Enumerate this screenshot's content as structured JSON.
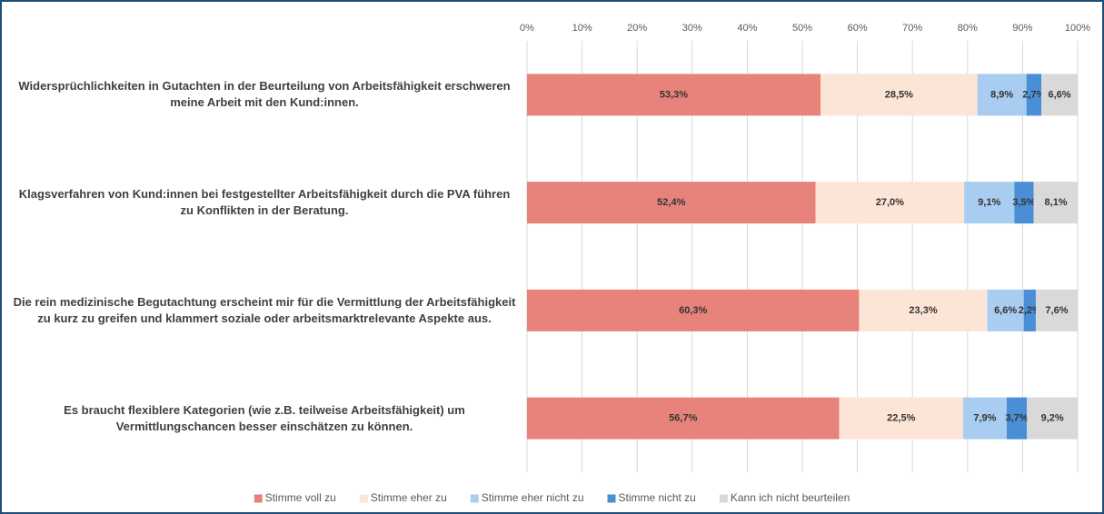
{
  "chart_data": {
    "type": "stacked-bar-horizontal",
    "categories": [
      "Widersprüchlichkeiten in Gutachten in der Beurteilung von Arbeitsfähigkeit erschweren meine Arbeit mit den Kund:innen.",
      "Klagsverfahren von Kund:innen bei festgestellter Arbeitsfähigkeit durch die PVA führen zu Konflikten in der Beratung.",
      "Die rein medizinische Begutachtung erscheint mir für die Vermittlung der Arbeitsfähigkeit zu kurz zu greifen und klammert soziale oder arbeitsmarktrelevante Aspekte aus.",
      "Es braucht flexiblere Kategorien (wie z.B. teilweise Arbeitsfähigkeit) um Vermittlungschancen besser einschätzen zu können."
    ],
    "series": [
      {
        "name": "Stimme voll zu",
        "color": "#e8837b",
        "values": [
          53.3,
          52.4,
          60.3,
          56.7
        ],
        "value_labels": [
          "53,3%",
          "52,4%",
          "60,3%",
          "56,7%"
        ]
      },
      {
        "name": "Stimme eher zu",
        "color": "#fce4d6",
        "values": [
          28.5,
          27.0,
          23.3,
          22.5
        ],
        "value_labels": [
          "28,5%",
          "27,0%",
          "23,3%",
          "22,5%"
        ]
      },
      {
        "name": "Stimme eher nicht zu",
        "color": "#a9cdf0",
        "values": [
          8.9,
          9.1,
          6.6,
          7.9
        ],
        "value_labels": [
          "8,9%",
          "9,1%",
          "6,6%",
          "7,9%"
        ]
      },
      {
        "name": "Stimme nicht zu",
        "color": "#4a8fd6",
        "values": [
          2.7,
          3.5,
          2.2,
          3.7
        ],
        "value_labels": [
          "2,7%",
          "3,5%",
          "2,2%",
          "3,7%"
        ]
      },
      {
        "name": "Kann ich nicht beurteilen",
        "color": "#d9d9d9",
        "values": [
          6.6,
          8.1,
          7.6,
          9.2
        ],
        "value_labels": [
          "6,6%",
          "8,1%",
          "7,6%",
          "9,2%"
        ]
      }
    ],
    "xlim": [
      0,
      100
    ],
    "xticks": [
      {
        "value": 0,
        "label": "0%"
      },
      {
        "value": 10,
        "label": "10%"
      },
      {
        "value": 20,
        "label": "20%"
      },
      {
        "value": 30,
        "label": "30%"
      },
      {
        "value": 40,
        "label": "40%"
      },
      {
        "value": 50,
        "label": "50%"
      },
      {
        "value": 60,
        "label": "60%"
      },
      {
        "value": 70,
        "label": "70%"
      },
      {
        "value": 80,
        "label": "80%"
      },
      {
        "value": 90,
        "label": "90%"
      },
      {
        "value": 100,
        "label": "100%"
      }
    ],
    "grid": true,
    "legend": "bottom"
  }
}
